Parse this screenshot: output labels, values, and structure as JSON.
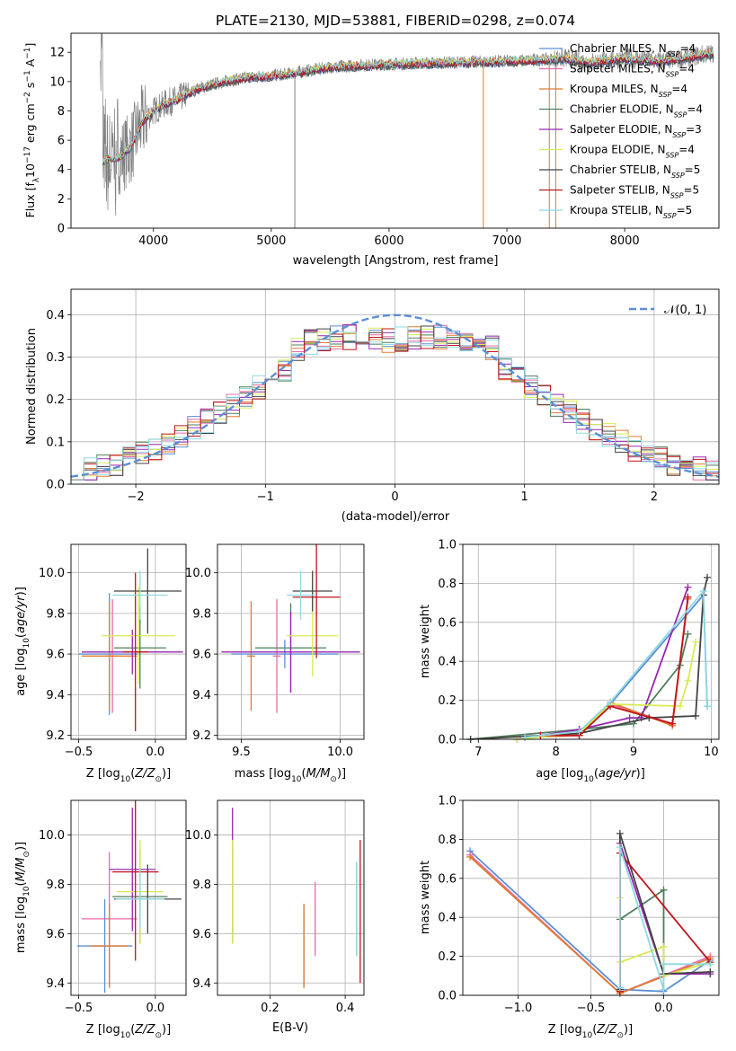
{
  "figure": {
    "title": "PLATE=2130, MJD=53881, FIBERID=0298, z=0.074"
  },
  "colors": {
    "Chabrier MILES": "#5b8fd6",
    "Salpeter MILES": "#e86ca5",
    "Kroupa MILES": "#e07b2f",
    "Chabrier ELODIE": "#4f7f5b",
    "Salpeter ELODIE": "#9a26b0",
    "Kroupa ELODIE": "#d9ea52",
    "Chabrier STELIB": "#444444",
    "Salpeter STELIB": "#c0141c",
    "Kroupa STELIB": "#8fd8e0",
    "data": "#808080",
    "gauss": "#5b8fd6"
  },
  "chart_data": [
    {
      "id": "spectrum",
      "type": "line",
      "title": "PLATE=2130, MJD=53881, FIBERID=0298, z=0.074",
      "xlabel": "wavelength [Angstrom, rest frame]",
      "ylabel": "Flux [fλ10⁻¹⁷ erg cm⁻² s⁻¹ A⁻¹]",
      "xlim": [
        3300,
        8800
      ],
      "ylim": [
        0,
        13.3
      ],
      "xticks": [
        4000,
        5000,
        6000,
        7000,
        8000
      ],
      "yticks": [
        0,
        2,
        4,
        6,
        8,
        10,
        12
      ],
      "legend": "top-right",
      "legend_entries": [
        "Chabrier MILES, Nₛₛₚ=4",
        "Salpeter MILES, Nₛₛₚ=4",
        "Kroupa MILES, Nₛₛₚ=4",
        "Chabrier ELODIE, Nₛₛₚ=4",
        "Salpeter ELODIE, Nₛₛₚ=3",
        "Kroupa ELODIE, Nₛₛₚ=4",
        "Chabrier STELIB, Nₛₛₚ=5",
        "Salpeter STELIB, Nₛₛₚ=5",
        "Kroupa STELIB, Nₛₛₚ=5"
      ],
      "legend_labels": [
        {
          "name": "Chabrier MILES, N",
          "sub": "SSP",
          "val": "=4"
        },
        {
          "name": "Salpeter MILES, N",
          "sub": "SSP",
          "val": "=4"
        },
        {
          "name": "Kroupa MILES, N",
          "sub": "SSP",
          "val": "=4"
        },
        {
          "name": "Chabrier ELODIE, N",
          "sub": "SSP",
          "val": "=4"
        },
        {
          "name": "Salpeter ELODIE, N",
          "sub": "SSP",
          "val": "=3"
        },
        {
          "name": "Kroupa ELODIE, N",
          "sub": "SSP",
          "val": "=4"
        },
        {
          "name": "Chabrier STELIB, N",
          "sub": "SSP",
          "val": "=5"
        },
        {
          "name": "Salpeter STELIB, N",
          "sub": "SSP",
          "val": "=5"
        },
        {
          "name": "Kroupa STELIB, N",
          "sub": "SSP",
          "val": "=5"
        }
      ],
      "continuum": [
        [
          3570,
          4.6
        ],
        [
          3700,
          4.8
        ],
        [
          3800,
          5.4
        ],
        [
          3900,
          7.2
        ],
        [
          4000,
          8.0
        ],
        [
          4100,
          8.5
        ],
        [
          4200,
          8.8
        ],
        [
          4400,
          9.6
        ],
        [
          4600,
          10.0
        ],
        [
          4800,
          10.3
        ],
        [
          5000,
          10.4
        ],
        [
          5200,
          10.6
        ],
        [
          5500,
          11.0
        ],
        [
          6000,
          11.2
        ],
        [
          6500,
          11.3
        ],
        [
          7000,
          11.4
        ],
        [
          7300,
          11.5
        ],
        [
          7500,
          11.6
        ],
        [
          7700,
          11.3
        ],
        [
          8000,
          11.6
        ],
        [
          8300,
          11.4
        ],
        [
          8500,
          11.6
        ],
        [
          8700,
          11.9
        ]
      ]
    },
    {
      "id": "residuals",
      "type": "line",
      "xlabel": "(data-model)/error",
      "ylabel": "Normed distribution",
      "xlim": [
        -2.5,
        2.5
      ],
      "ylim": [
        0,
        0.46
      ],
      "xticks": [
        -2,
        -1,
        0,
        1,
        2
      ],
      "yticks": [
        0.0,
        0.1,
        0.2,
        0.3,
        0.4
      ],
      "legend": "top-right",
      "series": [
        {
          "name": "N(0,1)",
          "mu": 0,
          "sigma": 1
        }
      ],
      "gauss_label": "𝒩(0, 1)"
    },
    {
      "id": "age_vs_Z",
      "type": "scatter",
      "xlabel": "Z [log₁₀(Z/Z⊙)]",
      "ylabel": "age  [log₁₀(age/yr)]",
      "xlim": [
        -0.55,
        0.2
      ],
      "ylim": [
        9.18,
        10.14
      ],
      "xticks": [
        -0.5,
        0.0
      ],
      "yticks": [
        9.2,
        9.4,
        9.6,
        9.8,
        10.0
      ],
      "points": [
        {
          "series": "Chabrier MILES",
          "x": -0.3,
          "y": 9.6,
          "xerr": 0.2,
          "yerr": 0.3
        },
        {
          "series": "Salpeter MILES",
          "x": -0.28,
          "y": 9.59,
          "xerr": 0.05,
          "yerr": 0.28
        },
        {
          "series": "Kroupa MILES",
          "x": -0.3,
          "y": 9.59,
          "xerr": 0.18,
          "yerr": 0.27
        },
        {
          "series": "Chabrier ELODIE",
          "x": -0.1,
          "y": 9.63,
          "xerr": 0.17,
          "yerr": 0.2
        },
        {
          "series": "Salpeter ELODIE",
          "x": -0.15,
          "y": 9.61,
          "xerr": 0.33,
          "yerr": 0.11
        },
        {
          "series": "Kroupa ELODIE",
          "x": -0.11,
          "y": 9.69,
          "xerr": 0.24,
          "yerr": 0.24
        },
        {
          "series": "Chabrier STELIB",
          "x": -0.05,
          "y": 9.91,
          "xerr": 0.22,
          "yerr": 0.21
        },
        {
          "series": "Salpeter STELIB",
          "x": -0.13,
          "y": 9.61,
          "xerr": 0.08,
          "yerr": 0.39
        },
        {
          "series": "Kroupa STELIB",
          "x": -0.1,
          "y": 9.89,
          "xerr": 0.18,
          "yerr": 0.12
        }
      ]
    },
    {
      "id": "age_vs_mass",
      "type": "scatter",
      "xlabel": "mass [log₁₀(M/M⊙)]",
      "xlim": [
        9.38,
        10.12
      ],
      "ylim": [
        9.18,
        10.14
      ],
      "xticks": [
        9.5,
        10.0
      ],
      "yticks": [
        9.2,
        9.4,
        9.6,
        9.8,
        10.0
      ],
      "points": [
        {
          "series": "Chabrier MILES",
          "x": 9.72,
          "y": 9.6,
          "xerr": 0.27,
          "yerr": 0.07
        },
        {
          "series": "Salpeter MILES",
          "x": 9.68,
          "y": 9.59,
          "xerr": 0.02,
          "yerr": 0.28
        },
        {
          "series": "Kroupa MILES",
          "x": 9.55,
          "y": 9.59,
          "xerr": 0.02,
          "yerr": 0.27
        },
        {
          "series": "Chabrier ELODIE",
          "x": 9.75,
          "y": 9.63,
          "xerr": 0.18,
          "yerr": 0.22
        },
        {
          "series": "Salpeter ELODIE",
          "x": 9.75,
          "y": 9.61,
          "xerr": 0.35,
          "yerr": 0.2
        },
        {
          "series": "Kroupa ELODIE",
          "x": 9.86,
          "y": 9.69,
          "xerr": 0.13,
          "yerr": 0.2
        },
        {
          "series": "Chabrier STELIB",
          "x": 9.86,
          "y": 9.91,
          "xerr": 0.1,
          "yerr": 0.1
        },
        {
          "series": "Salpeter STELIB",
          "x": 9.88,
          "y": 9.88,
          "xerr": 0.12,
          "yerr": 0.3
        },
        {
          "series": "Kroupa STELIB",
          "x": 9.8,
          "y": 9.89,
          "xerr": 0.07,
          "yerr": 0.12
        }
      ]
    },
    {
      "id": "weight_vs_age",
      "type": "line",
      "xlabel": "age  [log₁₀(age/yr)]",
      "ylabel": "mass weight",
      "xlim": [
        6.8,
        10.1
      ],
      "ylim": [
        0,
        1.0
      ],
      "xticks": [
        7,
        8,
        9,
        10
      ],
      "yticks": [
        0.0,
        0.2,
        0.4,
        0.6,
        0.8,
        1.0
      ],
      "series": [
        {
          "name": "Chabrier MILES",
          "x": [
            7.6,
            8.3,
            8.7,
            9.9,
            9.95
          ],
          "y": [
            0.01,
            0.03,
            0.18,
            0.74,
            0.17
          ]
        },
        {
          "name": "Salpeter MILES",
          "x": [
            7.6,
            8.3,
            8.7,
            9.5,
            9.7
          ],
          "y": [
            0.01,
            0.02,
            0.18,
            0.08,
            0.72
          ]
        },
        {
          "name": "Kroupa MILES",
          "x": [
            7.6,
            8.3,
            8.7,
            9.5,
            9.7
          ],
          "y": [
            0.01,
            0.02,
            0.19,
            0.07,
            0.72
          ]
        },
        {
          "name": "Chabrier ELODIE",
          "x": [
            6.9,
            8.3,
            9.0,
            9.6,
            9.7
          ],
          "y": [
            0.0,
            0.05,
            0.08,
            0.38,
            0.54
          ]
        },
        {
          "name": "Salpeter ELODIE",
          "x": [
            7.5,
            8.3,
            8.95,
            9.1,
            9.7
          ],
          "y": [
            0.0,
            0.05,
            0.11,
            0.11,
            0.78
          ]
        },
        {
          "name": "Kroupa ELODIE",
          "x": [
            7.5,
            8.3,
            8.7,
            9.6,
            9.7,
            9.8
          ],
          "y": [
            0.0,
            0.03,
            0.18,
            0.17,
            0.3,
            0.5
          ]
        },
        {
          "name": "Chabrier STELIB",
          "x": [
            6.9,
            8.3,
            9.2,
            9.8,
            9.9,
            9.95
          ],
          "y": [
            0.0,
            0.03,
            0.11,
            0.12,
            0.74,
            0.83
          ]
        },
        {
          "name": "Salpeter STELIB",
          "x": [
            7.8,
            8.3,
            8.7,
            9.5,
            9.7
          ],
          "y": [
            0.02,
            0.02,
            0.17,
            0.08,
            0.73
          ]
        },
        {
          "name": "Kroupa STELIB",
          "x": [
            7.6,
            8.3,
            8.7,
            9.9,
            9.95
          ],
          "y": [
            0.01,
            0.04,
            0.19,
            0.76,
            0.17
          ]
        }
      ]
    },
    {
      "id": "mass_vs_Z",
      "type": "scatter",
      "xlabel": "Z [log₁₀(Z/Z⊙)]",
      "ylabel": "mass [log₁₀(M/M⊙)]",
      "xlim": [
        -0.55,
        0.2
      ],
      "ylim": [
        9.35,
        10.14
      ],
      "xticks": [
        -0.5,
        0.0
      ],
      "yticks": [
        9.4,
        9.6,
        9.8,
        10.0
      ],
      "points": [
        {
          "series": "Chabrier MILES",
          "x": -0.33,
          "y": 9.55,
          "xerr": 0.18,
          "yerr": 0.19
        },
        {
          "series": "Salpeter MILES",
          "x": -0.3,
          "y": 9.66,
          "xerr": 0.18,
          "yerr": 0.27
        },
        {
          "series": "Kroupa MILES",
          "x": -0.3,
          "y": 9.55,
          "xerr": 0.12,
          "yerr": 0.17
        },
        {
          "series": "Chabrier ELODIE",
          "x": -0.1,
          "y": 9.75,
          "xerr": 0.18,
          "yerr": 0.19
        },
        {
          "series": "Salpeter ELODIE",
          "x": -0.15,
          "y": 9.86,
          "xerr": 0.15,
          "yerr": 0.25
        },
        {
          "series": "Kroupa ELODIE",
          "x": -0.1,
          "y": 9.77,
          "xerr": 0.15,
          "yerr": 0.21
        },
        {
          "series": "Chabrier STELIB",
          "x": -0.05,
          "y": 9.74,
          "xerr": 0.22,
          "yerr": 0.14
        },
        {
          "series": "Salpeter STELIB",
          "x": -0.13,
          "y": 9.85,
          "xerr": 0.15,
          "yerr": 0.36
        },
        {
          "series": "Kroupa STELIB",
          "x": -0.1,
          "y": 9.74,
          "xerr": 0.16,
          "yerr": 0.12
        }
      ]
    },
    {
      "id": "mass_vs_ebv",
      "type": "scatter",
      "xlabel": "E(B-V)",
      "xlim": [
        0.06,
        0.45
      ],
      "ylim": [
        9.35,
        10.14
      ],
      "xticks": [
        0.2,
        0.4
      ],
      "yticks": [
        9.4,
        9.6,
        9.8,
        10.0
      ],
      "points": [
        {
          "series": "Chabrier MILES",
          "x": 0.29,
          "y": 9.55,
          "xerr": 0,
          "yerr": 0.17
        },
        {
          "series": "Salpeter MILES",
          "x": 0.32,
          "y": 9.66,
          "xerr": 0,
          "yerr": 0.15
        },
        {
          "series": "Kroupa MILES",
          "x": 0.29,
          "y": 9.55,
          "xerr": 0,
          "yerr": 0.17
        },
        {
          "series": "Chabrier ELODIE",
          "x": 0.1,
          "y": 9.75,
          "xerr": 0,
          "yerr": 0.19
        },
        {
          "series": "Salpeter ELODIE",
          "x": 0.1,
          "y": 9.86,
          "xerr": 0,
          "yerr": 0.25
        },
        {
          "series": "Kroupa ELODIE",
          "x": 0.1,
          "y": 9.77,
          "xerr": 0,
          "yerr": 0.21
        },
        {
          "series": "Chabrier STELIB",
          "x": 0.43,
          "y": 9.7,
          "xerr": 0,
          "yerr": 0.19
        },
        {
          "series": "Salpeter STELIB",
          "x": 0.44,
          "y": 9.69,
          "xerr": 0,
          "yerr": 0.29
        },
        {
          "series": "Kroupa STELIB",
          "x": 0.43,
          "y": 9.7,
          "xerr": 0,
          "yerr": 0.19
        }
      ]
    },
    {
      "id": "weight_vs_Z",
      "type": "line",
      "xlabel": "Z [log₁₀(Z/Z⊙)]",
      "ylabel": "mass weight",
      "xlim": [
        -1.38,
        0.38
      ],
      "ylim": [
        0,
        1.0
      ],
      "xticks": [
        -1.0,
        -0.5,
        0.0
      ],
      "yticks": [
        0.0,
        0.2,
        0.4,
        0.6,
        0.8,
        1.0
      ],
      "series": [
        {
          "name": "Chabrier MILES",
          "x": [
            -1.33,
            -0.3,
            0.0,
            0.32
          ],
          "y": [
            0.74,
            0.03,
            0.02,
            0.18
          ]
        },
        {
          "name": "Salpeter MILES",
          "x": [
            -1.33,
            -0.3,
            0.32
          ],
          "y": [
            0.72,
            0.01,
            0.2
          ]
        },
        {
          "name": "Kroupa MILES",
          "x": [
            -1.33,
            -0.3,
            0.32
          ],
          "y": [
            0.71,
            0.01,
            0.19
          ]
        },
        {
          "name": "Chabrier ELODIE",
          "x": [
            -0.3,
            -0.3,
            0.0,
            0.0,
            0.32
          ],
          "y": [
            0.02,
            0.39,
            0.54,
            0.11,
            0.11
          ]
        },
        {
          "name": "Salpeter ELODIE",
          "x": [
            -0.3,
            -0.3,
            0.0,
            0.0,
            0.32
          ],
          "y": [
            0.04,
            0.78,
            0.11,
            0.11,
            0.11
          ]
        },
        {
          "name": "Kroupa ELODIE",
          "x": [
            -0.3,
            -0.3,
            -0.3,
            0.0,
            0.0,
            0.32
          ],
          "y": [
            0.03,
            0.5,
            0.17,
            0.25,
            0.1,
            0.17
          ]
        },
        {
          "name": "Chabrier STELIB",
          "x": [
            -0.3,
            -0.3,
            0.0,
            0.32
          ],
          "y": [
            0.03,
            0.83,
            0.11,
            0.12
          ]
        },
        {
          "name": "Salpeter STELIB",
          "x": [
            -0.3,
            -0.3,
            0.32
          ],
          "y": [
            0.02,
            0.73,
            0.17
          ]
        },
        {
          "name": "Kroupa STELIB",
          "x": [
            -0.3,
            -0.3,
            0.0,
            0.0,
            0.32
          ],
          "y": [
            0.04,
            0.76,
            0.03,
            0.16,
            0.16
          ]
        }
      ]
    }
  ]
}
